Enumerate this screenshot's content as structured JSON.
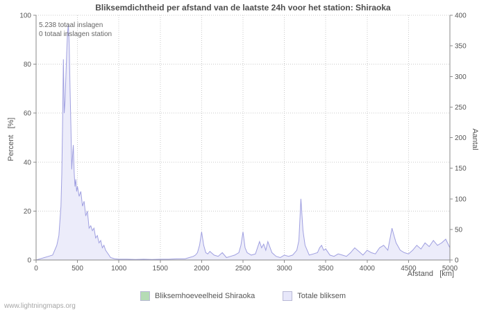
{
  "title": "Bliksemdichtheid per afstand van de laatste 24h voor het station: Shiraoka",
  "annotations": [
    "5.238 totaal inslagen",
    "0 totaal inslagen station"
  ],
  "axes": {
    "left": "Percent   [%]",
    "right": "Aantal",
    "x": "Afstand   [km]"
  },
  "legend": {
    "items": [
      {
        "label": "Bliksemhoeveelheid Shiraoka",
        "color": "#b5dcb5"
      },
      {
        "label": "Totale bliksem",
        "color": "#e7e7fa"
      }
    ]
  },
  "watermark": "www.lightningmaps.org",
  "chart_data": {
    "type": "area",
    "title": "Bliksemdichtheid per afstand van de laatste 24h voor het station: Shiraoka",
    "xlabel": "Afstand [km]",
    "ylabel_left": "Percent [%]",
    "ylabel_right": "Aantal",
    "xlim": [
      0,
      5000
    ],
    "ylim_left": [
      0,
      100
    ],
    "ylim_right": [
      0,
      400
    ],
    "x_ticks": [
      0,
      500,
      1000,
      1500,
      2000,
      2500,
      3000,
      3500,
      4000,
      4500,
      5000
    ],
    "y_ticks_left": [
      0,
      20,
      40,
      60,
      80,
      100
    ],
    "y_ticks_right": [
      0,
      50,
      100,
      150,
      200,
      250,
      300,
      350,
      400
    ],
    "grid": true,
    "legend_position": "bottom",
    "total_strikes": 5238,
    "total_strikes_station": 0,
    "x": [
      0,
      50,
      100,
      150,
      200,
      225,
      250,
      275,
      300,
      310,
      320,
      330,
      340,
      350,
      360,
      370,
      380,
      390,
      400,
      410,
      420,
      430,
      440,
      450,
      460,
      470,
      480,
      490,
      500,
      520,
      540,
      560,
      580,
      600,
      620,
      640,
      660,
      680,
      700,
      720,
      740,
      760,
      780,
      800,
      820,
      840,
      860,
      880,
      900,
      950,
      1000,
      1100,
      1200,
      1300,
      1400,
      1500,
      1600,
      1700,
      1800,
      1850,
      1900,
      1925,
      1950,
      1975,
      2000,
      2025,
      2050,
      2075,
      2100,
      2150,
      2200,
      2250,
      2300,
      2350,
      2400,
      2450,
      2475,
      2500,
      2525,
      2550,
      2600,
      2650,
      2700,
      2725,
      2750,
      2775,
      2800,
      2850,
      2900,
      2950,
      3000,
      3050,
      3100,
      3150,
      3175,
      3200,
      3225,
      3250,
      3300,
      3350,
      3400,
      3425,
      3450,
      3475,
      3500,
      3550,
      3600,
      3650,
      3700,
      3750,
      3800,
      3850,
      3900,
      3950,
      4000,
      4050,
      4100,
      4150,
      4200,
      4250,
      4300,
      4325,
      4350,
      4400,
      4450,
      4500,
      4550,
      4600,
      4650,
      4700,
      4750,
      4800,
      4850,
      4900,
      4950,
      5000
    ],
    "series": [
      {
        "name": "Totale bliksem",
        "unit": "percent (left axis)",
        "line_color": "#9f9fe0",
        "fill_color": "#ececfa",
        "values": [
          0,
          0.5,
          1,
          1.5,
          2,
          4,
          6,
          10,
          22,
          35,
          55,
          82,
          60,
          65,
          75,
          85,
          93,
          96,
          88,
          70,
          55,
          37,
          42,
          47,
          36,
          30,
          33,
          28,
          30,
          26,
          28,
          22,
          24,
          18,
          20,
          13,
          14,
          12,
          13,
          9,
          10,
          7,
          8,
          5,
          6,
          4,
          3,
          2,
          1,
          0.5,
          0.3,
          0.3,
          0.2,
          0.3,
          0.2,
          0.3,
          0.3,
          0.5,
          0.5,
          1,
          1.5,
          2,
          3,
          6,
          11.5,
          6,
          3,
          2.5,
          3.5,
          2,
          1.5,
          3,
          1,
          1.5,
          2,
          3,
          6,
          11.5,
          5,
          3,
          2,
          2.5,
          7.5,
          5,
          6.5,
          4,
          7.5,
          3,
          1.5,
          1,
          2,
          1.5,
          2,
          4,
          8,
          25,
          12,
          6,
          2,
          2.5,
          3,
          5,
          6,
          4,
          4.5,
          2,
          1.5,
          2.5,
          2,
          1.5,
          3,
          5,
          3.5,
          2,
          4,
          3,
          2.5,
          5,
          6,
          4,
          13,
          10,
          7,
          4,
          3,
          2.5,
          4,
          6,
          4.5,
          7,
          5.5,
          8,
          6,
          7,
          8.5,
          5
        ]
      }
    ]
  }
}
